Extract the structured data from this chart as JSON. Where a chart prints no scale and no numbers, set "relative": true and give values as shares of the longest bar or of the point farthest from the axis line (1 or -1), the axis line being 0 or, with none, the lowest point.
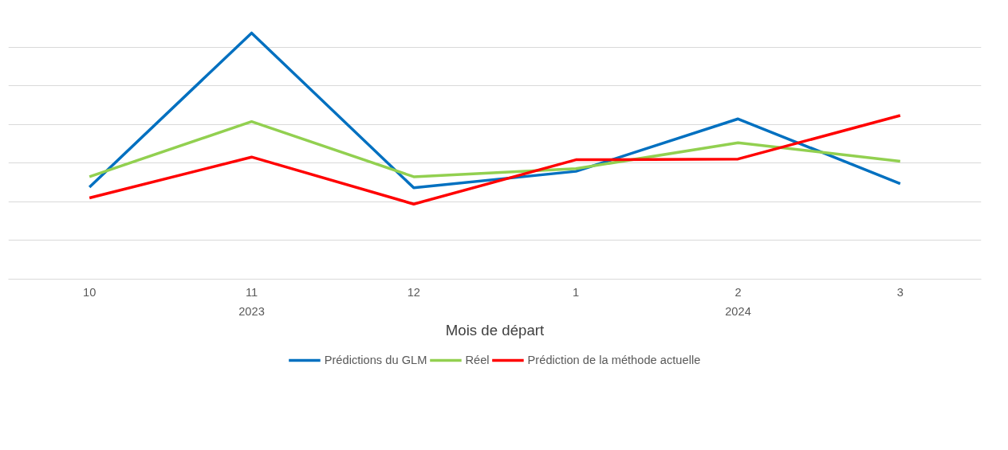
{
  "chart_data": {
    "type": "line",
    "relative": true,
    "xlabel": "Mois de départ",
    "categories": [
      "10",
      "11",
      "12",
      "1",
      "2",
      "3"
    ],
    "annotations": [
      "2023",
      "2024"
    ],
    "series": [
      {
        "name": "Prédictions du GLM",
        "color": "#0070c0",
        "values": [
          0.374,
          1,
          0.371,
          0.438,
          0.651,
          0.388
        ]
      },
      {
        "name": "Réel",
        "color": "#92d050",
        "values": [
          0.416,
          0.64,
          0.416,
          0.449,
          0.554,
          0.479
        ]
      },
      {
        "name": "Prédiction de la méthode actuelle",
        "color": "#ff0000",
        "values": [
          0.33,
          0.496,
          0.305,
          0.485,
          0.488,
          0.665
        ]
      }
    ],
    "grid": "y",
    "legend": "bottom",
    "marker": "none",
    "line_style": "solid"
  }
}
